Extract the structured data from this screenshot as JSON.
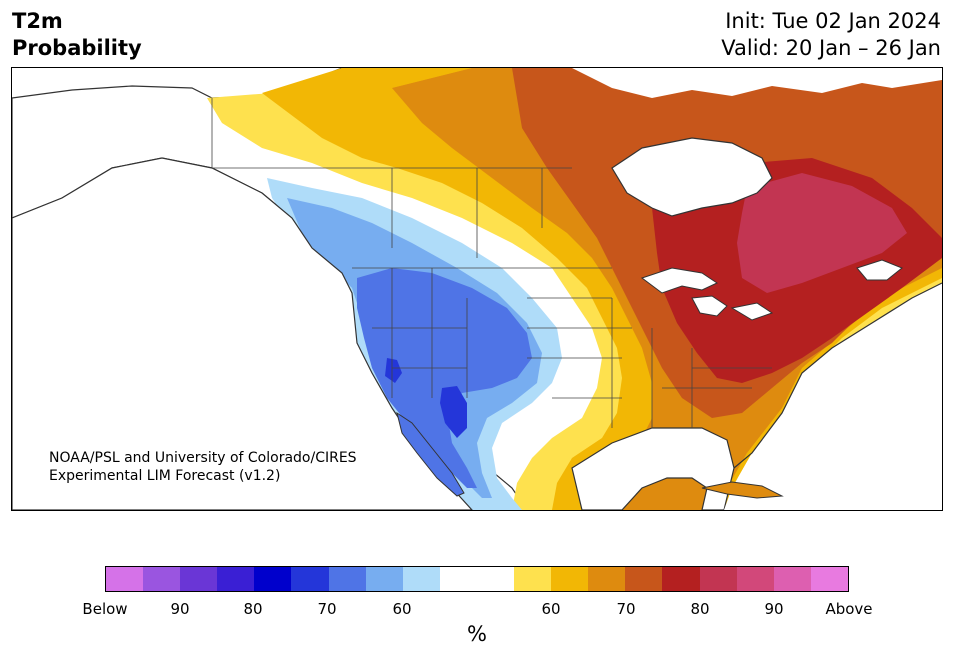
{
  "header": {
    "title_line1": "T2m",
    "title_line2": "Probability",
    "init": "Init: Tue 02 Jan 2024",
    "valid": "Valid: 20 Jan – 26 Jan"
  },
  "map": {
    "credit_line1": "NOAA/PSL and University of Colorado/CIRES",
    "credit_line2": "Experimental LIM Forecast (v1.2)"
  },
  "colorbar": {
    "unit": "%",
    "colors": [
      "#d572e8",
      "#9a55e0",
      "#6a36d6",
      "#3a1fd4",
      "#0000cc",
      "#2436d9",
      "#4f74e6",
      "#77adf0",
      "#afdcf9",
      "#ffffff",
      "#fee14e",
      "#f2b705",
      "#de8b0f",
      "#c7561b",
      "#b42020",
      "#c23552",
      "#d2487a",
      "#dd5fb0",
      "#e87ae0"
    ],
    "labels": [
      "Below",
      "90",
      "80",
      "70",
      "60",
      "60",
      "70",
      "80",
      "90",
      "Above"
    ]
  },
  "legend_colors": {
    "coastline": "#333333",
    "border": "#444444"
  }
}
